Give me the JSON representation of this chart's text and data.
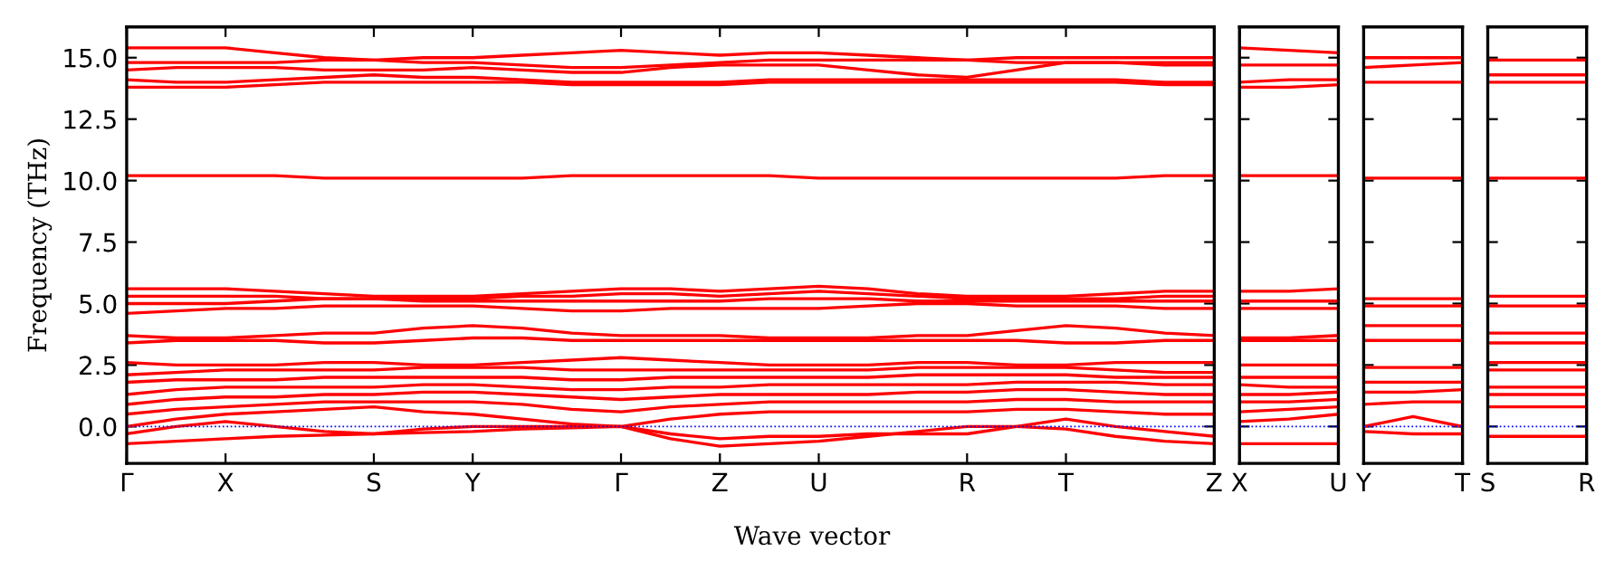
{
  "chart_data": [
    {
      "type": "line",
      "ylabel": "Frequency (THz)",
      "xlabel": "Wave vector",
      "categories": [
        "Γ",
        null,
        "X",
        null,
        null,
        "S",
        null,
        "Y",
        null,
        null,
        "Γ",
        null,
        "Z",
        null,
        "U",
        null,
        null,
        "R",
        null,
        "T",
        null,
        null,
        "Z"
      ],
      "ylim": [
        -1.5,
        16.25
      ],
      "yticks": [
        {
          "value": 0,
          "label": "0.0"
        },
        2.5,
        {
          "value": 5,
          "label": "5.0"
        },
        7.5,
        {
          "value": 10,
          "label": "10.0"
        },
        12.5,
        {
          "value": 15,
          "label": "15.0"
        }
      ],
      "ref_lines": [
        {
          "axis": "y",
          "value": 0,
          "color": "#0000ff",
          "line_style": "dotted"
        }
      ],
      "line_style": "solid",
      "marker": "none",
      "series": [
        {
          "color": "#ff0000",
          "values": [
            -0.7,
            -0.6,
            -0.5,
            -0.4,
            -0.35,
            -0.3,
            -0.25,
            -0.2,
            -0.1,
            -0.05,
            0.0,
            -0.5,
            -0.8,
            -0.7,
            -0.6,
            -0.4,
            -0.2,
            0.0,
            0.0,
            -0.1,
            -0.4,
            -0.6,
            -0.7
          ]
        },
        {
          "color": "#ff0000",
          "values": [
            -0.3,
            0.0,
            0.2,
            0.0,
            -0.2,
            -0.3,
            -0.1,
            0.0,
            0.0,
            0.0,
            0.0,
            -0.3,
            -0.5,
            -0.4,
            -0.4,
            -0.3,
            -0.3,
            -0.3,
            0.0,
            0.3,
            0.0,
            -0.2,
            -0.4
          ]
        },
        {
          "color": "#ff0000",
          "values": [
            0.0,
            0.3,
            0.5,
            0.6,
            0.7,
            0.8,
            0.6,
            0.5,
            0.3,
            0.1,
            0.0,
            0.3,
            0.5,
            0.6,
            0.6,
            0.6,
            0.6,
            0.6,
            0.7,
            0.7,
            0.6,
            0.5,
            0.5
          ]
        },
        {
          "color": "#ff0000",
          "values": [
            0.5,
            0.7,
            0.8,
            0.9,
            1.0,
            1.0,
            1.0,
            1.0,
            0.9,
            0.7,
            0.6,
            0.8,
            0.9,
            1.0,
            1.0,
            1.0,
            1.0,
            1.0,
            1.1,
            1.1,
            1.0,
            1.0,
            1.0
          ]
        },
        {
          "color": "#ff0000",
          "values": [
            0.9,
            1.1,
            1.2,
            1.2,
            1.3,
            1.3,
            1.4,
            1.4,
            1.3,
            1.2,
            1.1,
            1.2,
            1.3,
            1.3,
            1.3,
            1.3,
            1.4,
            1.4,
            1.5,
            1.5,
            1.4,
            1.3,
            1.3
          ]
        },
        {
          "color": "#ff0000",
          "values": [
            1.3,
            1.5,
            1.6,
            1.6,
            1.6,
            1.6,
            1.7,
            1.7,
            1.6,
            1.5,
            1.5,
            1.6,
            1.6,
            1.7,
            1.7,
            1.7,
            1.7,
            1.7,
            1.8,
            1.8,
            1.8,
            1.7,
            1.7
          ]
        },
        {
          "color": "#ff0000",
          "values": [
            1.8,
            1.9,
            1.9,
            1.9,
            2.0,
            2.0,
            2.0,
            2.0,
            2.0,
            1.9,
            1.9,
            2.0,
            2.0,
            2.0,
            2.0,
            2.0,
            2.1,
            2.1,
            2.1,
            2.1,
            2.0,
            2.0,
            2.0
          ]
        },
        {
          "color": "#ff0000",
          "values": [
            2.1,
            2.2,
            2.3,
            2.3,
            2.3,
            2.3,
            2.4,
            2.4,
            2.4,
            2.3,
            2.3,
            2.3,
            2.3,
            2.3,
            2.3,
            2.3,
            2.4,
            2.4,
            2.4,
            2.4,
            2.3,
            2.2,
            2.2
          ]
        },
        {
          "color": "#ff0000",
          "values": [
            2.6,
            2.5,
            2.5,
            2.5,
            2.6,
            2.6,
            2.5,
            2.5,
            2.6,
            2.7,
            2.8,
            2.7,
            2.6,
            2.5,
            2.5,
            2.5,
            2.6,
            2.6,
            2.5,
            2.5,
            2.6,
            2.6,
            2.6
          ]
        },
        {
          "color": "#ff0000",
          "values": [
            3.4,
            3.5,
            3.5,
            3.5,
            3.4,
            3.4,
            3.5,
            3.6,
            3.6,
            3.5,
            3.5,
            3.5,
            3.5,
            3.5,
            3.5,
            3.5,
            3.5,
            3.5,
            3.5,
            3.4,
            3.4,
            3.5,
            3.5
          ]
        },
        {
          "color": "#ff0000",
          "values": [
            3.7,
            3.6,
            3.6,
            3.7,
            3.8,
            3.8,
            4.0,
            4.1,
            4.0,
            3.8,
            3.7,
            3.7,
            3.7,
            3.6,
            3.6,
            3.6,
            3.7,
            3.7,
            3.9,
            4.1,
            4.0,
            3.8,
            3.7
          ]
        },
        {
          "color": "#ff0000",
          "values": [
            4.6,
            4.7,
            4.8,
            4.8,
            4.9,
            4.9,
            4.9,
            4.9,
            4.8,
            4.7,
            4.7,
            4.8,
            4.8,
            4.8,
            4.8,
            4.9,
            5.0,
            5.0,
            4.9,
            4.9,
            4.9,
            4.8,
            4.8
          ]
        },
        {
          "color": "#ff0000",
          "values": [
            5.0,
            5.0,
            5.0,
            5.1,
            5.2,
            5.2,
            5.1,
            5.1,
            5.1,
            5.1,
            5.1,
            5.1,
            5.1,
            5.2,
            5.2,
            5.2,
            5.1,
            5.1,
            5.1,
            5.1,
            5.1,
            5.1,
            5.1
          ]
        },
        {
          "color": "#ff0000",
          "values": [
            5.3,
            5.3,
            5.3,
            5.3,
            5.2,
            5.2,
            5.2,
            5.2,
            5.3,
            5.3,
            5.4,
            5.4,
            5.3,
            5.4,
            5.5,
            5.4,
            5.3,
            5.2,
            5.2,
            5.2,
            5.2,
            5.3,
            5.3
          ]
        },
        {
          "color": "#ff0000",
          "values": [
            5.6,
            5.6,
            5.6,
            5.5,
            5.4,
            5.3,
            5.3,
            5.3,
            5.4,
            5.5,
            5.6,
            5.6,
            5.5,
            5.6,
            5.7,
            5.6,
            5.4,
            5.3,
            5.3,
            5.3,
            5.4,
            5.5,
            5.5
          ]
        },
        {
          "color": "#ff0000",
          "values": [
            10.2,
            10.2,
            10.2,
            10.2,
            10.1,
            10.1,
            10.1,
            10.1,
            10.1,
            10.2,
            10.2,
            10.2,
            10.2,
            10.2,
            10.1,
            10.1,
            10.1,
            10.1,
            10.1,
            10.1,
            10.1,
            10.2,
            10.2
          ]
        },
        {
          "color": "#ff0000",
          "values": [
            13.8,
            13.8,
            13.8,
            13.9,
            14.0,
            14.0,
            14.0,
            14.0,
            14.0,
            13.9,
            13.9,
            13.9,
            13.9,
            14.0,
            14.0,
            14.0,
            14.0,
            14.0,
            14.0,
            14.0,
            14.0,
            13.9,
            13.9
          ]
        },
        {
          "color": "#ff0000",
          "values": [
            14.1,
            14.0,
            14.0,
            14.1,
            14.2,
            14.3,
            14.2,
            14.2,
            14.1,
            14.0,
            14.0,
            14.0,
            14.0,
            14.1,
            14.1,
            14.1,
            14.1,
            14.1,
            14.1,
            14.1,
            14.1,
            14.0,
            14.0
          ]
        },
        {
          "color": "#ff0000",
          "values": [
            14.5,
            14.6,
            14.6,
            14.6,
            14.5,
            14.5,
            14.5,
            14.6,
            14.5,
            14.4,
            14.4,
            14.6,
            14.7,
            14.7,
            14.7,
            14.5,
            14.3,
            14.2,
            14.5,
            14.8,
            14.8,
            14.7,
            14.7
          ]
        },
        {
          "color": "#ff0000",
          "values": [
            14.8,
            14.8,
            14.8,
            14.8,
            14.9,
            14.9,
            14.8,
            14.8,
            14.7,
            14.6,
            14.6,
            14.7,
            14.8,
            14.9,
            14.9,
            14.9,
            14.9,
            14.9,
            14.8,
            14.8,
            14.8,
            14.8,
            14.8
          ]
        },
        {
          "color": "#ff0000",
          "values": [
            15.4,
            15.4,
            15.4,
            15.2,
            15.0,
            14.9,
            15.0,
            15.0,
            15.1,
            15.2,
            15.3,
            15.2,
            15.1,
            15.2,
            15.2,
            15.1,
            15.0,
            14.9,
            15.0,
            15.0,
            15.0,
            15.0,
            15.0
          ]
        }
      ]
    },
    {
      "type": "line",
      "categories": [
        "X",
        null,
        "U"
      ],
      "ylim": [
        -1.5,
        16.25
      ],
      "yticks": [
        0,
        2.5,
        5,
        7.5,
        10,
        12.5,
        15
      ],
      "tick_labels": "x",
      "ref_lines": [
        {
          "axis": "y",
          "value": 0,
          "color": "#0000ff",
          "line_style": "dotted"
        }
      ],
      "line_style": "solid",
      "marker": "none",
      "series": [
        {
          "color": "#ff0000",
          "values": [
            -0.7,
            -0.7,
            -0.7
          ]
        },
        {
          "color": "#ff0000",
          "values": [
            0.2,
            0.3,
            0.5
          ]
        },
        {
          "color": "#ff0000",
          "values": [
            0.6,
            0.7,
            0.8
          ]
        },
        {
          "color": "#ff0000",
          "values": [
            1.0,
            1.0,
            1.1
          ]
        },
        {
          "color": "#ff0000",
          "values": [
            1.3,
            1.3,
            1.4
          ]
        },
        {
          "color": "#ff0000",
          "values": [
            1.7,
            1.6,
            1.6
          ]
        },
        {
          "color": "#ff0000",
          "values": [
            2.0,
            2.0,
            2.0
          ]
        },
        {
          "color": "#ff0000",
          "values": [
            2.5,
            2.5,
            2.5
          ]
        },
        {
          "color": "#ff0000",
          "values": [
            3.5,
            3.5,
            3.5
          ]
        },
        {
          "color": "#ff0000",
          "values": [
            3.6,
            3.6,
            3.7
          ]
        },
        {
          "color": "#ff0000",
          "values": [
            4.8,
            4.8,
            4.8
          ]
        },
        {
          "color": "#ff0000",
          "values": [
            5.1,
            5.1,
            5.1
          ]
        },
        {
          "color": "#ff0000",
          "values": [
            5.5,
            5.5,
            5.6
          ]
        },
        {
          "color": "#ff0000",
          "values": [
            10.2,
            10.2,
            10.2
          ]
        },
        {
          "color": "#ff0000",
          "values": [
            13.8,
            13.8,
            13.9
          ]
        },
        {
          "color": "#ff0000",
          "values": [
            14.0,
            14.1,
            14.1
          ]
        },
        {
          "color": "#ff0000",
          "values": [
            14.7,
            14.7,
            14.7
          ]
        },
        {
          "color": "#ff0000",
          "values": [
            15.4,
            15.3,
            15.2
          ]
        }
      ]
    },
    {
      "type": "line",
      "categories": [
        "Y",
        null,
        "T"
      ],
      "ylim": [
        -1.5,
        16.25
      ],
      "yticks": [
        0,
        2.5,
        5,
        7.5,
        10,
        12.5,
        15
      ],
      "tick_labels": "x",
      "ref_lines": [
        {
          "axis": "y",
          "value": 0,
          "color": "#0000ff",
          "line_style": "dotted"
        }
      ],
      "line_style": "solid",
      "marker": "none",
      "series": [
        {
          "color": "#ff0000",
          "values": [
            -0.2,
            -0.3,
            -0.3
          ]
        },
        {
          "color": "#ff0000",
          "values": [
            0.0,
            0.4,
            0.0
          ]
        },
        {
          "color": "#ff0000",
          "values": [
            0.9,
            1.0,
            1.0
          ]
        },
        {
          "color": "#ff0000",
          "values": [
            1.4,
            1.4,
            1.5
          ]
        },
        {
          "color": "#ff0000",
          "values": [
            1.8,
            1.8,
            1.8
          ]
        },
        {
          "color": "#ff0000",
          "values": [
            2.4,
            2.4,
            2.4
          ]
        },
        {
          "color": "#ff0000",
          "values": [
            3.5,
            3.5,
            3.5
          ]
        },
        {
          "color": "#ff0000",
          "values": [
            4.1,
            4.1,
            4.1
          ]
        },
        {
          "color": "#ff0000",
          "values": [
            4.9,
            4.9,
            4.9
          ]
        },
        {
          "color": "#ff0000",
          "values": [
            5.2,
            5.2,
            5.2
          ]
        },
        {
          "color": "#ff0000",
          "values": [
            10.1,
            10.1,
            10.1
          ]
        },
        {
          "color": "#ff0000",
          "values": [
            14.0,
            14.0,
            14.0
          ]
        },
        {
          "color": "#ff0000",
          "values": [
            14.6,
            14.7,
            14.8
          ]
        },
        {
          "color": "#ff0000",
          "values": [
            15.0,
            15.0,
            15.0
          ]
        }
      ]
    },
    {
      "type": "line",
      "categories": [
        "S",
        null,
        "R"
      ],
      "ylim": [
        -1.5,
        16.25
      ],
      "yticks": [
        0,
        2.5,
        5,
        7.5,
        10,
        12.5,
        15
      ],
      "tick_labels": "x",
      "ref_lines": [
        {
          "axis": "y",
          "value": 0,
          "color": "#0000ff",
          "line_style": "dotted"
        }
      ],
      "line_style": "solid",
      "marker": "none",
      "series": [
        {
          "color": "#ff0000",
          "values": [
            -0.4,
            -0.4,
            -0.4
          ]
        },
        {
          "color": "#ff0000",
          "values": [
            0.8,
            0.8,
            0.8
          ]
        },
        {
          "color": "#ff0000",
          "values": [
            1.3,
            1.3,
            1.3
          ]
        },
        {
          "color": "#ff0000",
          "values": [
            1.6,
            1.6,
            1.6
          ]
        },
        {
          "color": "#ff0000",
          "values": [
            2.3,
            2.3,
            2.3
          ]
        },
        {
          "color": "#ff0000",
          "values": [
            2.6,
            2.6,
            2.6
          ]
        },
        {
          "color": "#ff0000",
          "values": [
            3.4,
            3.4,
            3.4
          ]
        },
        {
          "color": "#ff0000",
          "values": [
            3.8,
            3.8,
            3.8
          ]
        },
        {
          "color": "#ff0000",
          "values": [
            4.9,
            4.9,
            4.9
          ]
        },
        {
          "color": "#ff0000",
          "values": [
            5.3,
            5.3,
            5.3
          ]
        },
        {
          "color": "#ff0000",
          "values": [
            10.1,
            10.1,
            10.1
          ]
        },
        {
          "color": "#ff0000",
          "values": [
            14.0,
            14.0,
            14.0
          ]
        },
        {
          "color": "#ff0000",
          "values": [
            14.3,
            14.3,
            14.3
          ]
        },
        {
          "color": "#ff0000",
          "values": [
            14.9,
            14.9,
            14.9
          ]
        }
      ]
    }
  ]
}
